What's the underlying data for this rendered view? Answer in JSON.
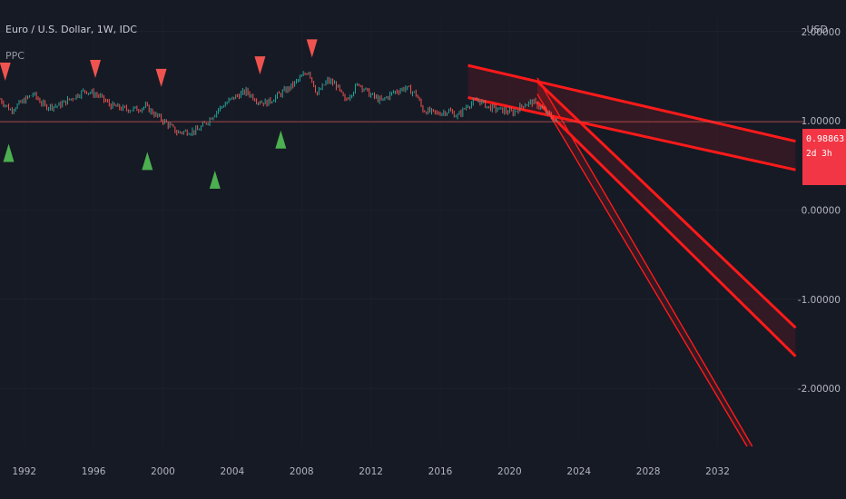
{
  "header": {
    "title": "Euro / U.S. Dollar, 1W, IDC",
    "indicator": "PPC",
    "currency": "USD"
  },
  "price_badge": {
    "value": "0.98863",
    "countdown": "2d 3h",
    "color": "#f23645"
  },
  "colors": {
    "background": "#161a25",
    "up_arrow": "#4caf50",
    "down_arrow": "#ef5350",
    "channel": "#ff1a1a",
    "price_line": "#d05050"
  },
  "chart_data": {
    "type": "line",
    "symbol": "Euro / U.S. Dollar",
    "timeframe": "1W",
    "x_ticks": [
      "1992",
      "1996",
      "2000",
      "2004",
      "2008",
      "2012",
      "2016",
      "2020",
      "2024",
      "2028",
      "2032"
    ],
    "y_ticks": [
      "2.00000",
      "1.00000",
      "0.00000",
      "-1.00000",
      "-2.00000"
    ],
    "ylim": [
      -2.65,
      2.15
    ],
    "xlim": [
      1990.6,
      2037.0
    ],
    "current_price": 0.98863,
    "series": [
      {
        "type": "candles",
        "points": [
          [
            1990.6,
            1.24
          ],
          [
            1991.2,
            1.12
          ],
          [
            1991.8,
            1.2
          ],
          [
            1992.5,
            1.3
          ],
          [
            1993.2,
            1.16
          ],
          [
            1994.0,
            1.17
          ],
          [
            1994.8,
            1.26
          ],
          [
            1995.5,
            1.34
          ],
          [
            1996.3,
            1.28
          ],
          [
            1997.0,
            1.17
          ],
          [
            1997.8,
            1.13
          ],
          [
            1998.5,
            1.13
          ],
          [
            1999.0,
            1.16
          ],
          [
            1999.6,
            1.06
          ],
          [
            2000.3,
            0.96
          ],
          [
            2000.8,
            0.87
          ],
          [
            2001.5,
            0.88
          ],
          [
            2002.0,
            0.89
          ],
          [
            2002.6,
            1.0
          ],
          [
            2003.2,
            1.13
          ],
          [
            2004.0,
            1.25
          ],
          [
            2004.8,
            1.33
          ],
          [
            2005.5,
            1.22
          ],
          [
            2006.0,
            1.2
          ],
          [
            2006.6,
            1.28
          ],
          [
            2007.3,
            1.37
          ],
          [
            2008.0,
            1.49
          ],
          [
            2008.4,
            1.56
          ],
          [
            2008.9,
            1.3
          ],
          [
            2009.5,
            1.45
          ],
          [
            2010.0,
            1.4
          ],
          [
            2010.5,
            1.22
          ],
          [
            2011.3,
            1.42
          ],
          [
            2011.9,
            1.3
          ],
          [
            2012.6,
            1.22
          ],
          [
            2013.3,
            1.32
          ],
          [
            2014.0,
            1.37
          ],
          [
            2014.6,
            1.3
          ],
          [
            2015.0,
            1.12
          ],
          [
            2015.8,
            1.08
          ],
          [
            2016.5,
            1.11
          ],
          [
            2017.0,
            1.05
          ],
          [
            2017.6,
            1.18
          ],
          [
            2018.2,
            1.23
          ],
          [
            2018.8,
            1.15
          ],
          [
            2019.5,
            1.12
          ],
          [
            2020.2,
            1.09
          ],
          [
            2020.8,
            1.18
          ],
          [
            2021.3,
            1.21
          ],
          [
            2021.8,
            1.15
          ],
          [
            2022.4,
            1.04
          ],
          [
            2022.7,
            0.99
          ]
        ]
      },
      {
        "name": "pivot highs",
        "type": "markers",
        "points": [
          [
            1990.9,
            1.55
          ],
          [
            1996.1,
            1.58
          ],
          [
            1999.9,
            1.48
          ],
          [
            2005.6,
            1.62
          ],
          [
            2008.6,
            1.81
          ]
        ]
      },
      {
        "name": "pivot lows",
        "type": "markers",
        "points": [
          [
            1991.1,
            0.64
          ],
          [
            1999.1,
            0.55
          ],
          [
            2003.0,
            0.34
          ],
          [
            2006.8,
            0.79
          ]
        ]
      },
      {
        "name": "projection channel 1",
        "type": "band",
        "upper": [
          [
            2017.6,
            1.62
          ],
          [
            2036.5,
            0.77
          ]
        ],
        "lower": [
          [
            2017.6,
            1.26
          ],
          [
            2036.5,
            0.45
          ]
        ]
      },
      {
        "name": "projection channel 2",
        "type": "band",
        "upper": [
          [
            2021.6,
            1.44
          ],
          [
            2036.5,
            -1.32
          ]
        ],
        "lower": [
          [
            2021.6,
            1.21
          ],
          [
            2036.5,
            -1.64
          ]
        ]
      },
      {
        "name": "projection channel 3",
        "type": "band",
        "upper": [
          [
            2021.6,
            1.48
          ],
          [
            2034.0,
            -2.65
          ]
        ],
        "lower": [
          [
            2021.6,
            1.3
          ],
          [
            2033.7,
            -2.65
          ]
        ]
      }
    ]
  }
}
